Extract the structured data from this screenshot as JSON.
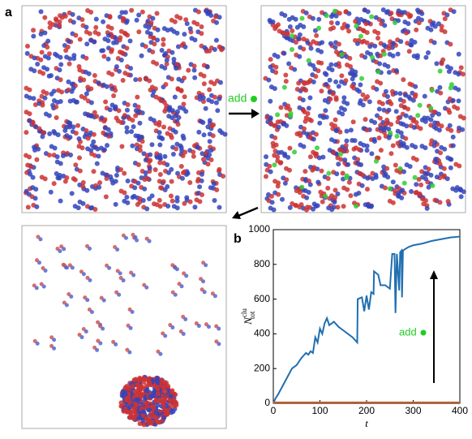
{
  "panel_labels": [
    "a",
    "b"
  ],
  "annotations": {
    "add_top": "add",
    "add_chart": "add"
  },
  "chart_data": {
    "type": "line",
    "xlabel": "t",
    "ylabel": "N",
    "ylabel_sup": "clu",
    "ylabel_sub": "tot",
    "x": [
      0,
      5,
      10,
      20,
      30,
      40,
      50,
      60,
      70,
      75,
      80,
      85,
      90,
      95,
      100,
      105,
      110,
      115,
      120,
      130,
      140,
      150,
      160,
      170,
      180,
      181,
      190,
      195,
      200,
      205,
      210,
      215,
      216,
      225,
      230,
      240,
      250,
      255,
      260,
      262,
      265,
      270,
      272,
      275,
      276,
      278,
      290,
      300,
      320,
      340,
      360,
      380,
      400
    ],
    "series": [
      {
        "color": "#1f6fb0",
        "values": [
          0,
          30,
          50,
          100,
          150,
          200,
          220,
          260,
          290,
          280,
          300,
          290,
          380,
          350,
          430,
          400,
          460,
          490,
          450,
          470,
          440,
          420,
          400,
          380,
          350,
          600,
          610,
          530,
          620,
          540,
          640,
          630,
          760,
          740,
          680,
          680,
          660,
          860,
          860,
          520,
          860,
          650,
          870,
          880,
          610,
          880,
          900,
          910,
          920,
          935,
          945,
          955,
          960
        ]
      },
      {
        "color": "#d0602a",
        "values": [
          5,
          5,
          5,
          5,
          5,
          5,
          5,
          5,
          5,
          5,
          5,
          5,
          5,
          5,
          5,
          5,
          5,
          5,
          5,
          5,
          5,
          5,
          5,
          5,
          5,
          5,
          5,
          5,
          5,
          5,
          5,
          5,
          5,
          5,
          5,
          5,
          5,
          5,
          5,
          5,
          5,
          5,
          5,
          5,
          5,
          5,
          5,
          5,
          5,
          5,
          5,
          5,
          5
        ]
      }
    ],
    "xlim": [
      0,
      400
    ],
    "xticks": [
      0,
      100,
      200,
      300,
      400
    ],
    "ylim": [
      0,
      1000
    ],
    "yticks": [
      0,
      200,
      400,
      600,
      800,
      1000
    ]
  }
}
